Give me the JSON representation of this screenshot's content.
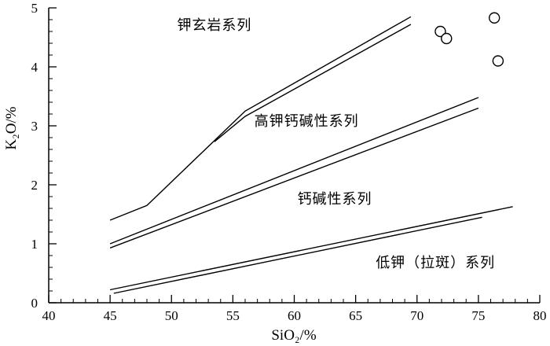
{
  "chart_data": {
    "type": "line",
    "xlabel": "SiO₂/%",
    "ylabel": "K₂O/%",
    "xlim": [
      40,
      80
    ],
    "ylim": [
      0,
      5
    ],
    "x_major_ticks": [
      40,
      45,
      50,
      55,
      60,
      65,
      70,
      75,
      80
    ],
    "y_major_ticks": [
      0,
      1,
      2,
      3,
      4,
      5
    ],
    "x_minor_step": 1,
    "y_minor_step": 0.2,
    "grid": false,
    "boundary_lines": [
      [
        [
          45,
          1.4
        ],
        [
          48,
          1.65
        ],
        [
          56,
          3.25
        ],
        [
          69.5,
          4.85
        ]
      ],
      [
        [
          53.5,
          2.73
        ],
        [
          56,
          3.16
        ],
        [
          69.5,
          4.72
        ]
      ],
      [
        [
          45,
          1.0
        ],
        [
          75,
          3.48
        ]
      ],
      [
        [
          45,
          0.93
        ],
        [
          75,
          3.3
        ]
      ],
      [
        [
          45,
          0.22
        ],
        [
          77.8,
          1.63
        ]
      ],
      [
        [
          45.3,
          0.16
        ],
        [
          75.3,
          1.45
        ]
      ]
    ],
    "region_labels": [
      {
        "text": "钾玄岩系列",
        "x": 53.5,
        "y": 4.63
      },
      {
        "text": "高钾钙碱性系列",
        "x": 61,
        "y": 3.0
      },
      {
        "text": "钙碱性系列",
        "x": 63.3,
        "y": 1.68
      },
      {
        "text": "低钾（拉斑）系列",
        "x": 71.5,
        "y": 0.6
      }
    ],
    "series": [
      {
        "points": [
          [
            71.9,
            4.6
          ],
          [
            72.4,
            4.48
          ],
          [
            76.3,
            4.83
          ],
          [
            76.6,
            4.1
          ]
        ]
      }
    ]
  }
}
